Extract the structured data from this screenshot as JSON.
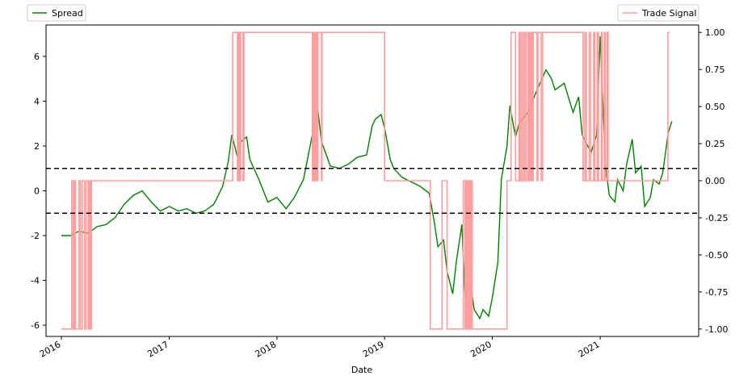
{
  "chart_data": {
    "type": "line",
    "xlabel": "Date",
    "ylabel_left": "",
    "ylabel_right": "",
    "x_ticks": [
      "2016",
      "2017",
      "2018",
      "2019",
      "2020",
      "2021"
    ],
    "x_range": [
      "2015-11-10",
      "2021-12-01"
    ],
    "y_left_range": [
      -6.5,
      7.4
    ],
    "y_left_ticks": [
      -6,
      -4,
      -2,
      0,
      2,
      4,
      6
    ],
    "y_right_range": [
      -1.05,
      1.05
    ],
    "y_right_ticks": [
      "-1.00",
      "-0.75",
      "-0.50",
      "-0.25",
      "0.00",
      "0.25",
      "0.50",
      "0.75",
      "1.00"
    ],
    "y_right_tick_values": [
      -1.0,
      -0.75,
      -0.5,
      -0.25,
      0.0,
      0.25,
      0.5,
      0.75,
      1.0
    ],
    "thresholds": [
      1.0,
      -1.0
    ],
    "grid": false,
    "legend_left_placement": "top-left",
    "legend_right_placement": "top-right",
    "series": [
      {
        "name": "Spread",
        "axis": "left",
        "color": "#008000",
        "x": [
          "2016-01-01",
          "2016-02-01",
          "2016-03-01",
          "2016-04-01",
          "2016-05-01",
          "2016-06-01",
          "2016-07-01",
          "2016-08-01",
          "2016-09-01",
          "2016-10-01",
          "2016-11-01",
          "2016-12-01",
          "2017-01-01",
          "2017-02-01",
          "2017-03-01",
          "2017-04-01",
          "2017-05-01",
          "2017-06-01",
          "2017-07-01",
          "2017-07-20",
          "2017-08-01",
          "2017-08-20",
          "2017-09-01",
          "2017-09-20",
          "2017-10-01",
          "2017-11-01",
          "2017-12-01",
          "2018-01-01",
          "2018-02-01",
          "2018-03-01",
          "2018-04-01",
          "2018-05-01",
          "2018-05-20",
          "2018-06-01",
          "2018-07-01",
          "2018-08-01",
          "2018-09-01",
          "2018-10-01",
          "2018-11-01",
          "2018-11-20",
          "2018-12-01",
          "2018-12-20",
          "2019-01-01",
          "2019-01-20",
          "2019-02-01",
          "2019-03-01",
          "2019-04-01",
          "2019-05-01",
          "2019-06-01",
          "2019-06-20",
          "2019-07-01",
          "2019-07-20",
          "2019-08-01",
          "2019-08-20",
          "2019-09-01",
          "2019-09-20",
          "2019-10-01",
          "2019-10-20",
          "2019-11-01",
          "2019-11-20",
          "2019-12-01",
          "2019-12-20",
          "2020-01-01",
          "2020-01-20",
          "2020-02-01",
          "2020-02-20",
          "2020-03-01",
          "2020-03-20",
          "2020-04-01",
          "2020-05-01",
          "2020-06-01",
          "2020-07-01",
          "2020-07-20",
          "2020-08-01",
          "2020-09-01",
          "2020-10-01",
          "2020-10-20",
          "2020-11-01",
          "2020-11-20",
          "2020-12-01",
          "2020-12-20",
          "2021-01-01",
          "2021-01-10",
          "2021-01-20",
          "2021-02-01",
          "2021-02-20",
          "2021-03-01",
          "2021-03-20",
          "2021-04-01",
          "2021-04-20",
          "2021-05-01",
          "2021-05-20",
          "2021-06-01",
          "2021-06-20",
          "2021-07-01",
          "2021-07-20",
          "2021-08-01",
          "2021-08-20",
          "2021-09-01"
        ],
        "values": [
          -2.0,
          -2.0,
          -1.8,
          -1.9,
          -1.6,
          -1.5,
          -1.2,
          -0.6,
          -0.2,
          0.0,
          -0.5,
          -0.9,
          -0.7,
          -0.9,
          -0.8,
          -1.0,
          -0.9,
          -0.6,
          0.2,
          1.3,
          2.5,
          1.5,
          2.2,
          2.4,
          1.4,
          0.5,
          -0.5,
          -0.3,
          -0.8,
          -0.3,
          0.5,
          2.5,
          3.6,
          2.2,
          1.1,
          1.0,
          1.2,
          1.5,
          1.6,
          2.9,
          3.2,
          3.4,
          2.8,
          1.4,
          1.0,
          0.6,
          0.4,
          0.2,
          -0.1,
          -1.5,
          -2.5,
          -2.2,
          -3.6,
          -4.6,
          -3.2,
          -1.5,
          -4.7,
          -4.2,
          -5.3,
          -5.7,
          -5.3,
          -5.6,
          -4.8,
          -3.2,
          0.5,
          2.0,
          3.8,
          2.4,
          3.0,
          3.5,
          4.5,
          5.4,
          5.0,
          4.5,
          4.8,
          3.5,
          4.2,
          2.5,
          2.0,
          1.7,
          2.5,
          6.9,
          4.0,
          1.0,
          -0.2,
          -0.5,
          0.5,
          0.0,
          1.2,
          2.3,
          0.8,
          1.1,
          -0.7,
          -0.3,
          0.5,
          0.3,
          0.8,
          2.6,
          3.1
        ]
      },
      {
        "name": "Trade Signal",
        "axis": "right",
        "color": "#ff9999",
        "x": [
          "2016-01-01",
          "2016-02-01",
          "2016-02-05",
          "2016-02-10",
          "2016-02-14",
          "2016-02-18",
          "2016-03-01",
          "2016-03-06",
          "2016-03-12",
          "2016-03-20",
          "2016-03-25",
          "2016-04-01",
          "2016-04-04",
          "2016-04-08",
          "2016-04-12",
          "2017-08-01",
          "2017-08-04",
          "2017-08-20",
          "2017-08-23",
          "2017-08-27",
          "2017-08-31",
          "2017-09-08",
          "2017-09-11",
          "2018-05-01",
          "2018-05-04",
          "2018-05-08",
          "2018-05-12",
          "2018-05-16",
          "2018-05-20",
          "2018-06-01",
          "2018-06-03",
          "2018-11-01",
          "2019-01-01",
          "2019-06-01",
          "2019-06-05",
          "2019-07-01",
          "2019-07-15",
          "2019-08-01",
          "2019-09-15",
          "2019-09-25",
          "2019-10-01",
          "2019-10-04",
          "2019-10-07",
          "2019-10-10",
          "2019-10-13",
          "2019-10-16",
          "2019-10-19",
          "2019-10-22",
          "2019-10-25",
          "2019-11-01",
          "2019-12-01",
          "2020-02-20",
          "2020-03-05",
          "2020-03-20",
          "2020-04-01",
          "2020-04-05",
          "2020-04-10",
          "2020-04-15",
          "2020-04-20",
          "2020-04-25",
          "2020-05-01",
          "2020-05-04",
          "2020-05-07",
          "2020-05-10",
          "2020-05-13",
          "2020-05-16",
          "2020-05-19",
          "2020-06-01",
          "2020-06-04",
          "2020-06-15",
          "2020-06-20",
          "2020-11-01",
          "2020-11-04",
          "2020-11-10",
          "2020-11-15",
          "2020-11-25",
          "2020-11-30",
          "2020-12-10",
          "2020-12-14",
          "2020-12-22",
          "2020-12-26",
          "2021-01-05",
          "2021-01-08",
          "2021-01-15",
          "2021-01-19",
          "2021-01-25",
          "2021-01-28",
          "2021-08-15",
          "2021-08-19",
          "2021-08-25"
        ],
        "values": [
          -1,
          -1,
          0,
          -1,
          0,
          -1,
          0,
          -1,
          0,
          -1,
          0,
          -1,
          0,
          -1,
          0,
          0,
          1,
          0,
          1,
          0,
          1,
          0,
          1,
          0,
          1,
          0,
          1,
          0,
          1,
          0,
          1,
          1,
          0,
          0,
          -1,
          -1,
          0,
          -1,
          -1,
          0,
          -1,
          0,
          -1,
          0,
          -1,
          0,
          -1,
          0,
          -1,
          -1,
          -1,
          0,
          1,
          0,
          1,
          0,
          1,
          0,
          1,
          0,
          1,
          0,
          1,
          0,
          1,
          0,
          1,
          0,
          1,
          0,
          1,
          1,
          0,
          1,
          0,
          1,
          0,
          1,
          0,
          1,
          0,
          1,
          0,
          1,
          0,
          1,
          0,
          0,
          1,
          1
        ]
      }
    ]
  }
}
